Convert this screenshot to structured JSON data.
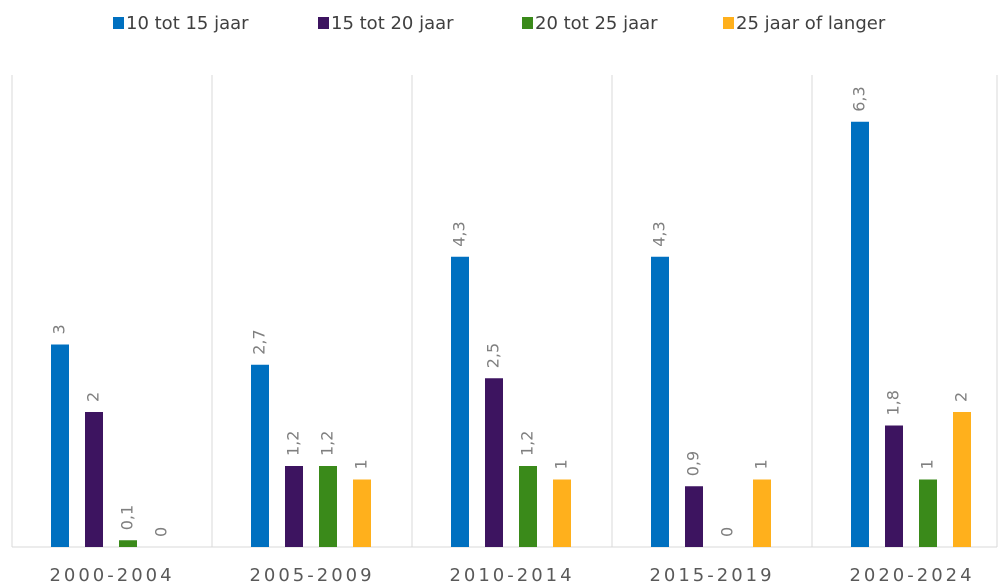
{
  "chart_data": {
    "type": "bar",
    "categories": [
      "2000-2004",
      "2005-2009",
      "2010-2014",
      "2015-2019",
      "2020-2024"
    ],
    "series": [
      {
        "name": "10 tot 15 jaar",
        "color": "#0070c0",
        "values": [
          3,
          2.7,
          4.3,
          4.3,
          6.3
        ],
        "value_labels": [
          "3",
          "2,7",
          "4,3",
          "4,3",
          "6,3"
        ]
      },
      {
        "name": "15 tot 20 jaar",
        "color": "#3d1460",
        "values": [
          2,
          1.2,
          2.5,
          0.9,
          1.8
        ],
        "value_labels": [
          "2",
          "1,2",
          "2,5",
          "0,9",
          "1,8"
        ]
      },
      {
        "name": "20 tot 25 jaar",
        "color": "#3a8a1a",
        "values": [
          0.1,
          1.2,
          1.2,
          0,
          1
        ],
        "value_labels": [
          "0,1",
          "1,2",
          "1,2",
          "0",
          "1"
        ]
      },
      {
        "name": "25 jaar of langer",
        "color": "#ffb01c",
        "values": [
          0,
          1,
          1,
          1,
          2
        ],
        "value_labels": [
          "0",
          "1",
          "1",
          "1",
          "2"
        ]
      }
    ],
    "legend": "top"
  }
}
